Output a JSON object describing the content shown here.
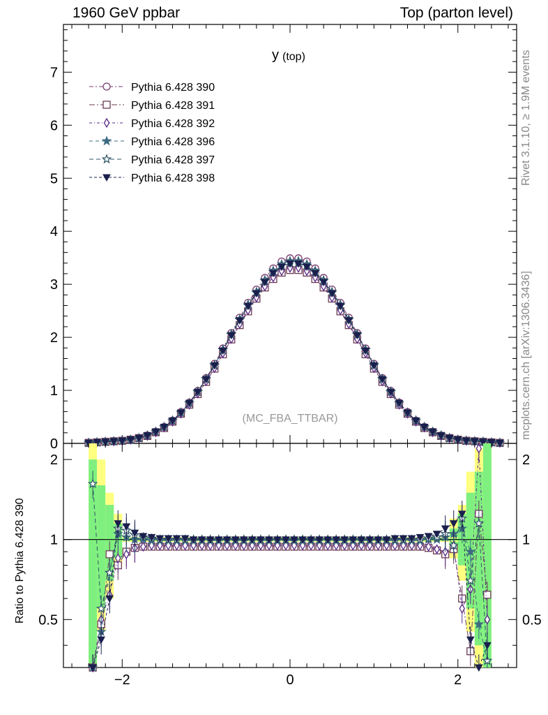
{
  "header": {
    "left": "1960 GeV ppbar",
    "right": "Top (parton level)"
  },
  "side_labels": {
    "rivet": "Rivet 3.1.10, ≥ 1.9M events",
    "url": "mcplots.cern.ch [arXiv:1306.3436]"
  },
  "chart_data": [
    {
      "type": "line",
      "title": "y",
      "title_sub": "(top)",
      "watermark": "(MC_FBA_TTBAR)",
      "xlim": [
        -2.7,
        2.7
      ],
      "ylim": [
        0,
        7.9
      ],
      "x_ticks": [
        -2,
        0,
        2
      ],
      "y_ticks": [
        0,
        1,
        2,
        3,
        4,
        5,
        6,
        7
      ],
      "y_tick_labels": [
        "0",
        "1",
        "2",
        "3",
        "4",
        "5",
        "6",
        "7"
      ],
      "legend_position": "top-left",
      "x": [
        -2.4,
        -2.3,
        -2.2,
        -2.1,
        -2.0,
        -1.9,
        -1.8,
        -1.7,
        -1.6,
        -1.5,
        -1.4,
        -1.3,
        -1.2,
        -1.1,
        -1.0,
        -0.9,
        -0.8,
        -0.7,
        -0.6,
        -0.5,
        -0.4,
        -0.3,
        -0.2,
        -0.1,
        0.0,
        0.1,
        0.2,
        0.3,
        0.4,
        0.5,
        0.6,
        0.7,
        0.8,
        0.9,
        1.0,
        1.1,
        1.2,
        1.3,
        1.4,
        1.5,
        1.6,
        1.7,
        1.8,
        1.9,
        2.0,
        2.1,
        2.2,
        2.3,
        2.4,
        2.5
      ],
      "series": [
        {
          "name": "Pythia 6.428 390",
          "marker": "circle-open",
          "color": "#7a3b6e",
          "values": [
            0.01,
            0.02,
            0.03,
            0.04,
            0.05,
            0.07,
            0.1,
            0.15,
            0.22,
            0.31,
            0.43,
            0.59,
            0.77,
            0.99,
            1.23,
            1.5,
            1.79,
            2.08,
            2.37,
            2.65,
            2.9,
            3.12,
            3.3,
            3.43,
            3.49,
            3.49,
            3.43,
            3.3,
            3.12,
            2.9,
            2.65,
            2.37,
            2.08,
            1.79,
            1.5,
            1.23,
            0.99,
            0.77,
            0.59,
            0.43,
            0.31,
            0.22,
            0.15,
            0.1,
            0.07,
            0.05,
            0.04,
            0.03,
            0.02,
            0.01
          ]
        },
        {
          "name": "Pythia 6.428 391",
          "marker": "square-open",
          "color": "#6b3a54",
          "values": [
            0.01,
            0.02,
            0.03,
            0.04,
            0.05,
            0.07,
            0.1,
            0.14,
            0.21,
            0.29,
            0.41,
            0.56,
            0.73,
            0.93,
            1.16,
            1.41,
            1.68,
            1.96,
            2.23,
            2.49,
            2.73,
            2.94,
            3.1,
            3.22,
            3.27,
            3.27,
            3.22,
            3.1,
            2.94,
            2.73,
            2.49,
            2.23,
            1.96,
            1.68,
            1.41,
            1.16,
            0.93,
            0.73,
            0.56,
            0.41,
            0.29,
            0.21,
            0.14,
            0.1,
            0.07,
            0.05,
            0.04,
            0.03,
            0.02,
            0.01
          ]
        },
        {
          "name": "Pythia 6.428 392",
          "marker": "diamond-open",
          "color": "#5b2a86",
          "values": [
            0.01,
            0.02,
            0.03,
            0.04,
            0.05,
            0.07,
            0.1,
            0.14,
            0.21,
            0.3,
            0.41,
            0.56,
            0.73,
            0.94,
            1.17,
            1.42,
            1.7,
            1.97,
            2.25,
            2.51,
            2.75,
            2.96,
            3.13,
            3.25,
            3.31,
            3.31,
            3.25,
            3.13,
            2.96,
            2.75,
            2.51,
            2.25,
            1.97,
            1.7,
            1.42,
            1.17,
            0.94,
            0.73,
            0.56,
            0.41,
            0.3,
            0.21,
            0.14,
            0.1,
            0.07,
            0.05,
            0.04,
            0.03,
            0.02,
            0.01
          ]
        },
        {
          "name": "Pythia 6.428 396",
          "marker": "star-filled",
          "color": "#3e6b80",
          "values": [
            0.01,
            0.02,
            0.03,
            0.04,
            0.05,
            0.07,
            0.1,
            0.15,
            0.22,
            0.31,
            0.43,
            0.58,
            0.76,
            0.98,
            1.22,
            1.48,
            1.77,
            2.06,
            2.34,
            2.62,
            2.86,
            3.08,
            3.26,
            3.38,
            3.44,
            3.44,
            3.38,
            3.26,
            3.08,
            2.86,
            2.62,
            2.34,
            2.06,
            1.77,
            1.48,
            1.22,
            0.98,
            0.76,
            0.58,
            0.43,
            0.31,
            0.22,
            0.15,
            0.1,
            0.07,
            0.05,
            0.04,
            0.03,
            0.02,
            0.01
          ]
        },
        {
          "name": "Pythia 6.428 397",
          "marker": "star-open",
          "color": "#2e5566",
          "values": [
            0.01,
            0.02,
            0.03,
            0.04,
            0.05,
            0.07,
            0.1,
            0.15,
            0.22,
            0.31,
            0.43,
            0.58,
            0.76,
            0.97,
            1.21,
            1.47,
            1.76,
            2.05,
            2.33,
            2.6,
            2.84,
            3.06,
            3.23,
            3.35,
            3.41,
            3.41,
            3.35,
            3.23,
            3.06,
            2.84,
            2.6,
            2.33,
            2.05,
            1.76,
            1.47,
            1.21,
            0.97,
            0.76,
            0.58,
            0.43,
            0.31,
            0.22,
            0.15,
            0.1,
            0.07,
            0.05,
            0.04,
            0.03,
            0.02,
            0.01
          ]
        },
        {
          "name": "Pythia 6.428 398",
          "marker": "triangle-down-filled",
          "color": "#1a1f4d",
          "values": [
            0.01,
            0.02,
            0.03,
            0.04,
            0.05,
            0.07,
            0.1,
            0.15,
            0.22,
            0.31,
            0.43,
            0.58,
            0.76,
            0.97,
            1.21,
            1.47,
            1.75,
            2.04,
            2.32,
            2.59,
            2.83,
            3.04,
            3.21,
            3.33,
            3.39,
            3.39,
            3.33,
            3.21,
            3.04,
            2.83,
            2.59,
            2.32,
            2.04,
            1.75,
            1.47,
            1.21,
            0.97,
            0.76,
            0.58,
            0.43,
            0.31,
            0.22,
            0.15,
            0.1,
            0.07,
            0.05,
            0.04,
            0.03,
            0.02,
            0.01
          ]
        }
      ]
    },
    {
      "type": "line",
      "ylabel": "Ratio to Pythia 6.428 390",
      "xlim": [
        -2.7,
        2.7
      ],
      "ylim": [
        0.33,
        2.3
      ],
      "log_y": true,
      "y_ticks": [
        0.5,
        1,
        2
      ],
      "y_tick_labels": [
        "0.5",
        "1",
        "2"
      ],
      "x_ticks": [
        -2,
        0,
        2
      ],
      "x_tick_labels": [
        "−2",
        "0",
        "2"
      ],
      "reference_line": 1,
      "band_colors": {
        "inner": "#7ff07f",
        "outer": "#ffff80"
      },
      "band_x": [
        -2.35,
        -2.25,
        -2.15,
        -2.05,
        1.95,
        2.05,
        2.15,
        2.25,
        2.35
      ],
      "band_inner": [
        [
          0.33,
          2.0
        ],
        [
          0.55,
          1.6
        ],
        [
          0.7,
          1.35
        ],
        [
          0.85,
          1.15
        ],
        [
          0.9,
          1.1
        ],
        [
          0.8,
          1.25
        ],
        [
          0.55,
          1.5
        ],
        [
          0.4,
          1.8
        ],
        [
          0.33,
          2.3
        ]
      ],
      "band_outer": [
        [
          0.33,
          2.3
        ],
        [
          0.45,
          2.0
        ],
        [
          0.6,
          1.5
        ],
        [
          0.8,
          1.25
        ],
        [
          0.85,
          1.2
        ],
        [
          0.7,
          1.35
        ],
        [
          0.45,
          1.8
        ],
        [
          0.33,
          2.2
        ],
        [
          0.33,
          2.3
        ]
      ],
      "x": [
        -2.35,
        -2.25,
        -2.15,
        -2.05,
        -1.95,
        -1.85,
        -1.75,
        -1.65,
        -1.55,
        -1.45,
        -1.35,
        -1.25,
        -1.15,
        -1.05,
        -0.95,
        -0.85,
        -0.75,
        -0.65,
        -0.55,
        -0.45,
        -0.35,
        -0.25,
        -0.15,
        -0.05,
        0.05,
        0.15,
        0.25,
        0.35,
        0.45,
        0.55,
        0.65,
        0.75,
        0.85,
        0.95,
        1.05,
        1.15,
        1.25,
        1.35,
        1.45,
        1.55,
        1.65,
        1.75,
        1.85,
        1.95,
        2.05,
        2.15,
        2.25,
        2.35
      ],
      "series": [
        {
          "name": "Pythia 6.428 391",
          "values": [
            0.33,
            0.48,
            0.88,
            0.8,
            0.9,
            0.93,
            0.94,
            0.94,
            0.94,
            0.94,
            0.94,
            0.94,
            0.94,
            0.94,
            0.94,
            0.94,
            0.94,
            0.94,
            0.94,
            0.94,
            0.94,
            0.94,
            0.94,
            0.94,
            0.94,
            0.94,
            0.94,
            0.94,
            0.94,
            0.94,
            0.94,
            0.94,
            0.94,
            0.94,
            0.94,
            0.94,
            0.94,
            0.94,
            0.94,
            0.94,
            0.93,
            0.91,
            0.88,
            0.92,
            0.6,
            0.38,
            1.25,
            0.62
          ]
        },
        {
          "name": "Pythia 6.428 392",
          "values": [
            0.33,
            0.5,
            0.62,
            0.85,
            0.88,
            0.93,
            0.94,
            0.95,
            0.95,
            0.95,
            0.95,
            0.95,
            0.95,
            0.95,
            0.95,
            0.95,
            0.95,
            0.95,
            0.95,
            0.95,
            0.95,
            0.95,
            0.95,
            0.95,
            0.95,
            0.95,
            0.95,
            0.95,
            0.95,
            0.95,
            0.95,
            0.95,
            0.95,
            0.95,
            0.95,
            0.95,
            0.95,
            0.95,
            0.95,
            0.95,
            0.94,
            0.92,
            0.9,
            0.95,
            0.55,
            0.65,
            2.2,
            0.5
          ]
        },
        {
          "name": "Pythia 6.428 396",
          "values": [
            0.33,
            0.45,
            0.75,
            1.05,
            1.02,
            1.0,
            1.0,
            0.99,
            0.99,
            0.99,
            0.99,
            0.99,
            0.99,
            0.99,
            0.99,
            0.99,
            0.99,
            0.99,
            0.99,
            0.99,
            0.99,
            0.99,
            0.99,
            0.99,
            0.99,
            0.99,
            0.99,
            0.99,
            0.99,
            0.99,
            0.99,
            0.99,
            0.99,
            0.99,
            0.99,
            0.99,
            0.99,
            0.99,
            0.99,
            0.99,
            1.0,
            1.0,
            1.02,
            1.05,
            1.1,
            0.9,
            0.48,
            0.35
          ]
        },
        {
          "name": "Pythia 6.428 397",
          "values": [
            1.62,
            0.55,
            0.75,
            1.1,
            1.08,
            1.04,
            1.02,
            1.01,
            1.0,
            1.0,
            1.0,
            1.0,
            1.0,
            1.0,
            1.0,
            1.0,
            1.0,
            1.0,
            1.0,
            1.0,
            1.0,
            1.0,
            1.0,
            1.0,
            1.0,
            1.0,
            1.0,
            1.0,
            1.0,
            1.0,
            1.0,
            1.0,
            1.0,
            1.0,
            1.0,
            1.0,
            1.0,
            1.0,
            1.0,
            1.0,
            1.01,
            1.02,
            1.05,
            0.95,
            1.2,
            0.7,
            1.15,
            0.35
          ]
        },
        {
          "name": "Pythia 6.428 398",
          "values": [
            0.33,
            0.42,
            0.6,
            1.15,
            1.12,
            1.06,
            1.03,
            1.02,
            1.01,
            1.01,
            1.01,
            1.01,
            1.0,
            1.0,
            1.0,
            1.0,
            1.0,
            1.0,
            1.0,
            1.0,
            1.0,
            1.0,
            1.0,
            1.0,
            1.0,
            1.0,
            1.0,
            1.0,
            1.0,
            1.0,
            1.0,
            1.0,
            1.0,
            1.0,
            1.0,
            1.0,
            1.01,
            1.01,
            1.01,
            1.02,
            1.03,
            1.05,
            1.1,
            1.15,
            1.25,
            0.42,
            0.33,
            0.4
          ]
        }
      ]
    }
  ]
}
